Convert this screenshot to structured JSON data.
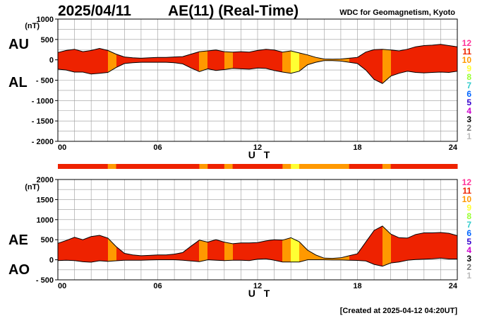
{
  "header": {
    "date": "2025/04/11",
    "title": "AE(11) (Real-Time)",
    "org": "WDC for Geomagnetism, Kyoto"
  },
  "footer": {
    "created": "[Created at 2025-04-12 04:20UT]"
  },
  "colors": {
    "axis": "#000000",
    "grid": "#9a9a9a",
    "bar_default": "#ee3311"
  },
  "legend": [
    {
      "label": "12",
      "color": "#ff3399"
    },
    {
      "label": "11",
      "color": "#ee2200"
    },
    {
      "label": "10",
      "color": "#ff9900"
    },
    {
      "label": "9",
      "color": "#ffff33"
    },
    {
      "label": "8",
      "color": "#99ff33"
    },
    {
      "label": "7",
      "color": "#33cccc"
    },
    {
      "label": "6",
      "color": "#0066ff"
    },
    {
      "label": "5",
      "color": "#3300cc"
    },
    {
      "label": "4",
      "color": "#cc00cc"
    },
    {
      "label": "3",
      "color": "#000000"
    },
    {
      "label": "2",
      "color": "#777777"
    },
    {
      "label": "1",
      "color": "#bbbbbb"
    }
  ],
  "chart_data": [
    {
      "type": "area",
      "id": "top",
      "title": "AU / AL",
      "label_upper": "AU",
      "label_lower": "AL",
      "xlabel": "U T",
      "ylabel": "(nT)",
      "xlim": [
        0,
        24
      ],
      "ylim": [
        -2000,
        1000
      ],
      "x_ticks": [
        "00",
        "06",
        "12",
        "18",
        "24"
      ],
      "y_tick_values": [
        1000,
        500,
        0,
        -500,
        -1000,
        -1500,
        -2000
      ],
      "y_tick_labels": [
        "1000",
        "500",
        "0",
        "- 500",
        "- 1000",
        "- 1500",
        "- 2000"
      ],
      "hours": [
        0,
        0.5,
        1,
        1.5,
        2,
        2.5,
        3,
        3.5,
        4,
        4.5,
        5,
        5.5,
        6,
        6.5,
        7,
        7.5,
        8,
        8.5,
        9,
        9.5,
        10,
        10.5,
        11,
        11.5,
        12,
        12.5,
        13,
        13.5,
        14,
        14.5,
        15,
        15.5,
        16,
        16.5,
        17,
        17.5,
        18,
        18.5,
        19,
        19.5,
        20,
        20.5,
        21,
        21.5,
        22,
        22.5,
        23,
        23.5,
        24
      ],
      "upper": [
        180,
        230,
        260,
        200,
        230,
        280,
        230,
        140,
        70,
        50,
        40,
        50,
        60,
        60,
        70,
        80,
        140,
        200,
        220,
        240,
        200,
        190,
        200,
        190,
        230,
        260,
        240,
        190,
        220,
        170,
        120,
        60,
        20,
        15,
        20,
        40,
        60,
        190,
        250,
        260,
        240,
        220,
        260,
        320,
        350,
        360,
        380,
        350,
        320
      ],
      "lower": [
        -230,
        -250,
        -300,
        -300,
        -350,
        -330,
        -310,
        -190,
        -90,
        -70,
        -60,
        -60,
        -60,
        -60,
        -70,
        -100,
        -200,
        -290,
        -220,
        -260,
        -240,
        -210,
        -220,
        -230,
        -200,
        -210,
        -260,
        -300,
        -330,
        -280,
        -120,
        -60,
        -20,
        -20,
        -30,
        -60,
        -90,
        -250,
        -480,
        -580,
        -400,
        -330,
        -280,
        -310,
        -320,
        -310,
        -300,
        -310,
        -280
      ]
    },
    {
      "type": "area",
      "id": "bottom",
      "title": "AE / AO",
      "label_upper": "AE",
      "label_lower": "AO",
      "xlabel": "U T",
      "ylabel": "(nT)",
      "xlim": [
        0,
        24
      ],
      "ylim": [
        -500,
        2000
      ],
      "x_ticks": [
        "00",
        "06",
        "12",
        "18",
        "24"
      ],
      "y_tick_values": [
        2000,
        1500,
        1000,
        500,
        0,
        -500
      ],
      "y_tick_labels": [
        "2000",
        "1500",
        "1000",
        "500",
        "0",
        "- 500"
      ],
      "hours": [
        0,
        0.5,
        1,
        1.5,
        2,
        2.5,
        3,
        3.5,
        4,
        4.5,
        5,
        5.5,
        6,
        6.5,
        7,
        7.5,
        8,
        8.5,
        9,
        9.5,
        10,
        10.5,
        11,
        11.5,
        12,
        12.5,
        13,
        13.5,
        14,
        14.5,
        15,
        15.5,
        16,
        16.5,
        17,
        17.5,
        18,
        18.5,
        19,
        19.5,
        20,
        20.5,
        21,
        21.5,
        22,
        22.5,
        23,
        23.5,
        24
      ],
      "upper": [
        410,
        480,
        560,
        500,
        580,
        610,
        540,
        330,
        160,
        120,
        100,
        110,
        120,
        120,
        140,
        180,
        340,
        490,
        440,
        500,
        440,
        400,
        420,
        420,
        430,
        470,
        500,
        490,
        550,
        450,
        240,
        120,
        40,
        35,
        50,
        100,
        150,
        440,
        730,
        840,
        640,
        550,
        540,
        630,
        670,
        670,
        680,
        660,
        600
      ],
      "lower": [
        -20,
        -10,
        -20,
        -50,
        -60,
        -25,
        -40,
        -25,
        -10,
        -10,
        -10,
        -5,
        0,
        0,
        0,
        -10,
        -30,
        -45,
        0,
        -10,
        -20,
        -10,
        -10,
        -20,
        15,
        25,
        -10,
        -55,
        -55,
        -55,
        0,
        0,
        0,
        -5,
        -5,
        -10,
        -15,
        -30,
        -115,
        -160,
        -80,
        -55,
        -10,
        5,
        15,
        25,
        40,
        20,
        20
      ]
    }
  ],
  "ae_class_bar": {
    "hours": [
      0,
      0.5,
      1,
      1.5,
      2,
      2.5,
      3,
      3.5,
      4,
      4.5,
      5,
      5.5,
      6,
      6.5,
      7,
      7.5,
      8,
      8.5,
      9,
      9.5,
      10,
      10.5,
      11,
      11.5,
      12,
      12.5,
      13,
      13.5,
      14,
      14.5,
      15,
      15.5,
      16,
      16.5,
      17,
      17.5,
      18,
      18.5,
      19,
      19.5,
      20,
      20.5,
      21,
      21.5,
      22,
      22.5,
      23,
      23.5
    ],
    "levels": [
      11,
      11,
      11,
      11,
      11,
      11,
      10,
      11,
      11,
      11,
      11,
      11,
      11,
      11,
      11,
      11,
      11,
      10,
      11,
      11,
      10,
      11,
      11,
      11,
      11,
      11,
      11,
      10,
      9,
      10,
      10,
      10,
      10,
      10,
      10,
      11,
      11,
      11,
      11,
      10,
      11,
      11,
      11,
      11,
      11,
      11,
      11,
      11
    ]
  }
}
